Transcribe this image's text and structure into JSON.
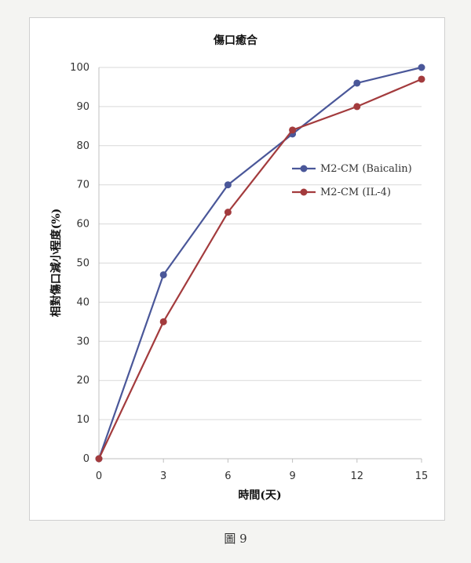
{
  "figure_caption": "圖 9",
  "chart_data": {
    "type": "line",
    "title": "傷口癒合",
    "xlabel": "時間(天)",
    "ylabel": "相對傷口減小程度(%)",
    "x": [
      0,
      3,
      6,
      9,
      12,
      15
    ],
    "xticks": [
      "0",
      "3",
      "6",
      "9",
      "12",
      "15"
    ],
    "yticks": [
      "0",
      "10",
      "20",
      "30",
      "40",
      "50",
      "60",
      "70",
      "80",
      "90",
      "100"
    ],
    "xlim": [
      0,
      15
    ],
    "ylim": [
      0,
      100
    ],
    "grid": "horizontal",
    "legend": "center-right",
    "series": [
      {
        "name": "M2-CM (Baicalin)",
        "color": "#4a5799",
        "values": [
          0,
          47,
          70,
          83,
          96,
          100
        ]
      },
      {
        "name": "M2-CM (IL-4)",
        "color": "#a33b3d",
        "values": [
          0,
          35,
          63,
          84,
          90,
          97
        ]
      }
    ]
  }
}
